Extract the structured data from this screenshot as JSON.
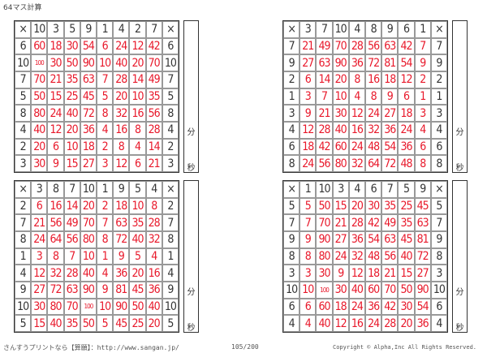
{
  "title": "64マス計算",
  "minutes_label": "分",
  "seconds_label": "秒",
  "times_symbol": "×",
  "grids": [
    {
      "header": [
        10,
        3,
        5,
        9,
        1,
        4,
        2,
        7
      ],
      "rows": [
        {
          "n": 6,
          "p": [
            60,
            18,
            30,
            54,
            6,
            24,
            12,
            42
          ]
        },
        {
          "n": 10,
          "p": [
            100,
            30,
            50,
            90,
            10,
            40,
            20,
            70
          ]
        },
        {
          "n": 7,
          "p": [
            70,
            21,
            35,
            63,
            7,
            28,
            14,
            49
          ]
        },
        {
          "n": 5,
          "p": [
            50,
            15,
            25,
            45,
            5,
            20,
            10,
            35
          ]
        },
        {
          "n": 8,
          "p": [
            80,
            24,
            40,
            72,
            8,
            32,
            16,
            56
          ]
        },
        {
          "n": 4,
          "p": [
            40,
            12,
            20,
            36,
            4,
            16,
            8,
            28
          ]
        },
        {
          "n": 2,
          "p": [
            20,
            6,
            10,
            18,
            2,
            8,
            4,
            14
          ]
        },
        {
          "n": 3,
          "p": [
            30,
            9,
            15,
            27,
            3,
            12,
            6,
            21
          ]
        }
      ]
    },
    {
      "header": [
        3,
        7,
        10,
        4,
        8,
        9,
        6,
        1
      ],
      "rows": [
        {
          "n": 7,
          "p": [
            21,
            49,
            70,
            28,
            56,
            63,
            42,
            7
          ]
        },
        {
          "n": 9,
          "p": [
            27,
            63,
            90,
            36,
            72,
            81,
            54,
            9
          ]
        },
        {
          "n": 2,
          "p": [
            6,
            14,
            20,
            8,
            16,
            18,
            12,
            2
          ]
        },
        {
          "n": 1,
          "p": [
            3,
            7,
            10,
            4,
            8,
            9,
            6,
            1
          ]
        },
        {
          "n": 3,
          "p": [
            9,
            21,
            30,
            12,
            24,
            27,
            18,
            3
          ]
        },
        {
          "n": 4,
          "p": [
            12,
            28,
            40,
            16,
            32,
            36,
            24,
            4
          ]
        },
        {
          "n": 6,
          "p": [
            18,
            42,
            60,
            24,
            48,
            54,
            36,
            6
          ]
        },
        {
          "n": 8,
          "p": [
            24,
            56,
            80,
            32,
            64,
            72,
            48,
            8
          ]
        }
      ]
    },
    {
      "header": [
        3,
        8,
        7,
        10,
        1,
        9,
        5,
        4
      ],
      "rows": [
        {
          "n": 2,
          "p": [
            6,
            16,
            14,
            20,
            2,
            18,
            10,
            8
          ]
        },
        {
          "n": 7,
          "p": [
            21,
            56,
            49,
            70,
            7,
            63,
            35,
            28
          ]
        },
        {
          "n": 8,
          "p": [
            24,
            64,
            56,
            80,
            8,
            72,
            40,
            32
          ]
        },
        {
          "n": 1,
          "p": [
            3,
            8,
            7,
            10,
            1,
            9,
            5,
            4
          ]
        },
        {
          "n": 4,
          "p": [
            12,
            32,
            28,
            40,
            4,
            36,
            20,
            16
          ]
        },
        {
          "n": 9,
          "p": [
            27,
            72,
            63,
            90,
            9,
            81,
            45,
            36
          ]
        },
        {
          "n": 10,
          "p": [
            30,
            80,
            70,
            100,
            10,
            90,
            50,
            40
          ]
        },
        {
          "n": 5,
          "p": [
            15,
            40,
            35,
            50,
            5,
            45,
            25,
            20
          ]
        }
      ]
    },
    {
      "header": [
        1,
        10,
        3,
        4,
        6,
        7,
        5,
        9
      ],
      "rows": [
        {
          "n": 5,
          "p": [
            5,
            50,
            15,
            20,
            30,
            35,
            25,
            45
          ]
        },
        {
          "n": 7,
          "p": [
            7,
            70,
            21,
            28,
            42,
            49,
            35,
            63
          ]
        },
        {
          "n": 9,
          "p": [
            9,
            90,
            27,
            36,
            54,
            63,
            45,
            81
          ]
        },
        {
          "n": 8,
          "p": [
            8,
            80,
            24,
            32,
            48,
            56,
            40,
            72
          ]
        },
        {
          "n": 3,
          "p": [
            3,
            30,
            9,
            12,
            18,
            21,
            15,
            27
          ]
        },
        {
          "n": 10,
          "p": [
            10,
            100,
            30,
            40,
            60,
            70,
            50,
            90
          ]
        },
        {
          "n": 6,
          "p": [
            6,
            60,
            18,
            24,
            36,
            42,
            30,
            54
          ]
        },
        {
          "n": 4,
          "p": [
            4,
            40,
            12,
            16,
            24,
            28,
            20,
            36
          ]
        }
      ]
    }
  ],
  "footer": {
    "site": "さんすうプリントなら【算願】：http://www.sangan.jp/",
    "page": "105/200",
    "copyright": "Copyright © Alpha,Inc All Rights Reserved."
  }
}
